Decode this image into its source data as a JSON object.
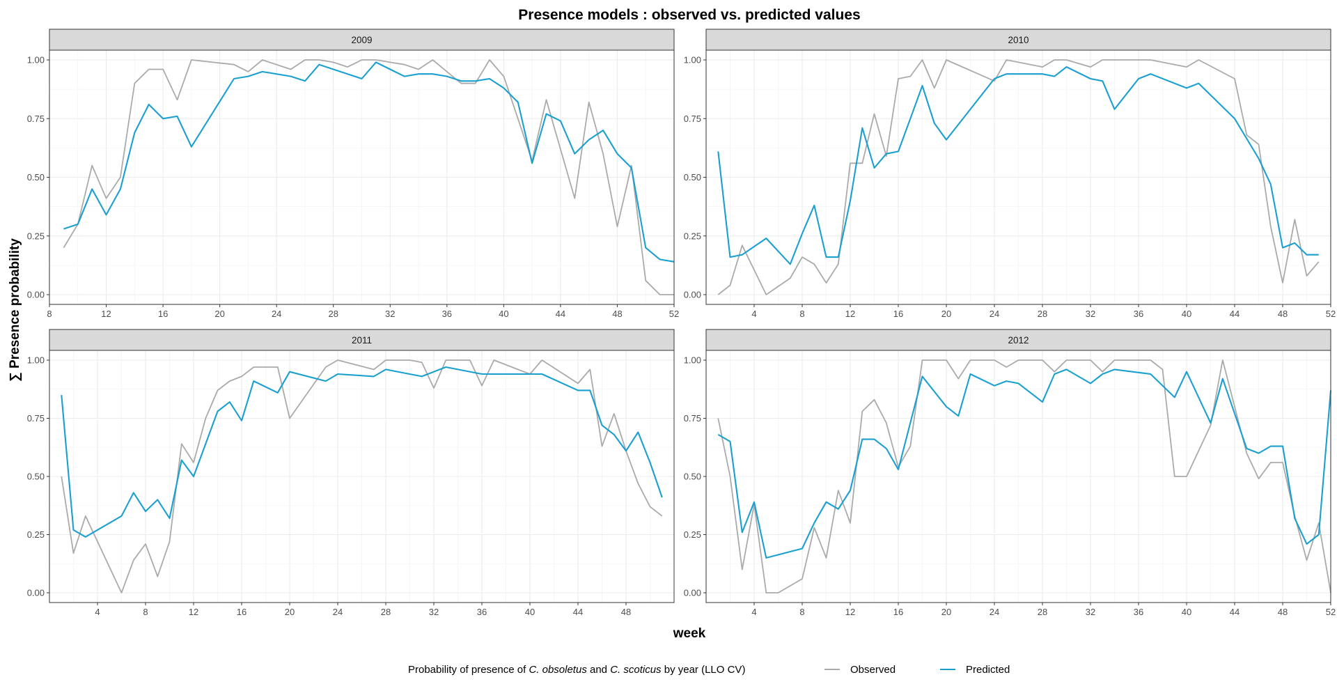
{
  "chart_data": {
    "type": "line",
    "title": "Presence models : observed vs. predicted values",
    "xlabel": "week",
    "ylabel": "∑ Presence probability",
    "grid": true,
    "legend_position": "bottom",
    "legend": {
      "title_parts": [
        "Probability of presence of ",
        "C. obsoletus",
        " and ",
        "C. scoticus",
        " by year (LLO CV)"
      ],
      "entries": [
        {
          "name": "Observed",
          "color": "#aaaaaa"
        },
        {
          "name": "Predicted",
          "color": "#1a9fd1"
        }
      ]
    },
    "ylim": [
      0,
      1
    ],
    "yticks": [
      0,
      0.25,
      0.5,
      0.75,
      1
    ],
    "ytick_labels": [
      "0.00",
      "0.25",
      "0.50",
      "0.75",
      "1.00"
    ],
    "panels": [
      {
        "label": "2009",
        "xlim": [
          8,
          52
        ],
        "xticks": [
          8,
          12,
          16,
          20,
          24,
          28,
          32,
          36,
          40,
          44,
          48,
          52
        ],
        "series": [
          {
            "name": "Observed",
            "color": "#aaaaaa",
            "x": [
              9,
              10,
              11,
              12,
              13,
              14,
              15,
              16,
              17,
              18,
              21,
              22,
              23,
              25,
              26,
              27,
              28,
              29,
              30,
              31,
              32,
              33,
              34,
              35,
              36,
              37,
              38,
              39,
              40,
              41,
              42,
              43,
              44,
              45,
              46,
              47,
              48,
              49,
              50,
              51,
              52
            ],
            "y": [
              0.2,
              0.3,
              0.55,
              0.41,
              0.5,
              0.9,
              0.96,
              0.96,
              0.83,
              1.0,
              0.98,
              0.95,
              1.0,
              0.96,
              1.0,
              1.0,
              0.99,
              0.97,
              1.0,
              1.0,
              0.99,
              0.98,
              0.96,
              1.0,
              0.95,
              0.9,
              0.9,
              1.0,
              0.93,
              0.75,
              0.57,
              0.83,
              0.62,
              0.41,
              0.82,
              0.6,
              0.29,
              0.55,
              0.06,
              0.0,
              0.0
            ]
          },
          {
            "name": "Predicted",
            "color": "#1a9fd1",
            "x": [
              9,
              10,
              11,
              12,
              13,
              14,
              15,
              16,
              17,
              18,
              21,
              22,
              23,
              25,
              26,
              27,
              28,
              29,
              30,
              31,
              32,
              33,
              34,
              35,
              36,
              37,
              38,
              39,
              40,
              41,
              42,
              43,
              44,
              45,
              46,
              47,
              48,
              49,
              50,
              51,
              52
            ],
            "y": [
              0.28,
              0.3,
              0.45,
              0.34,
              0.45,
              0.69,
              0.81,
              0.75,
              0.76,
              0.63,
              0.92,
              0.93,
              0.95,
              0.93,
              0.91,
              0.98,
              0.96,
              0.94,
              0.92,
              0.99,
              0.96,
              0.93,
              0.94,
              0.94,
              0.93,
              0.91,
              0.91,
              0.92,
              0.88,
              0.82,
              0.56,
              0.77,
              0.74,
              0.6,
              0.66,
              0.7,
              0.6,
              0.54,
              0.2,
              0.15,
              0.14
            ]
          }
        ]
      },
      {
        "label": "2010",
        "xlim": [
          0,
          52
        ],
        "xticks": [
          4,
          8,
          12,
          16,
          20,
          24,
          28,
          32,
          36,
          40,
          44,
          48,
          52
        ],
        "series": [
          {
            "name": "Observed",
            "color": "#aaaaaa",
            "x": [
              1,
              2,
              3,
              5,
              7,
              8,
              9,
              10,
              11,
              12,
              13,
              14,
              15,
              16,
              17,
              18,
              19,
              20,
              24,
              25,
              28,
              29,
              30,
              32,
              33,
              35,
              37,
              40,
              41,
              44,
              45,
              46,
              47,
              48,
              49,
              50,
              51
            ],
            "y": [
              0.0,
              0.04,
              0.21,
              0.0,
              0.07,
              0.16,
              0.13,
              0.05,
              0.13,
              0.56,
              0.56,
              0.77,
              0.59,
              0.92,
              0.93,
              1.0,
              0.88,
              1.0,
              0.91,
              1.0,
              0.97,
              1.0,
              1.0,
              0.97,
              1.0,
              1.0,
              1.0,
              0.97,
              1.0,
              0.92,
              0.68,
              0.64,
              0.29,
              0.05,
              0.32,
              0.08,
              0.14
            ]
          },
          {
            "name": "Predicted",
            "color": "#1a9fd1",
            "x": [
              1,
              2,
              3,
              5,
              7,
              8,
              9,
              10,
              11,
              12,
              13,
              14,
              15,
              16,
              17,
              18,
              19,
              20,
              24,
              25,
              28,
              29,
              30,
              32,
              33,
              34,
              36,
              37,
              40,
              41,
              44,
              46,
              47,
              48,
              49,
              50,
              51
            ],
            "y": [
              0.61,
              0.16,
              0.17,
              0.24,
              0.13,
              0.26,
              0.38,
              0.16,
              0.16,
              0.4,
              0.71,
              0.54,
              0.6,
              0.61,
              0.75,
              0.89,
              0.73,
              0.66,
              0.92,
              0.94,
              0.94,
              0.93,
              0.97,
              0.92,
              0.91,
              0.79,
              0.92,
              0.94,
              0.88,
              0.9,
              0.75,
              0.58,
              0.47,
              0.2,
              0.22,
              0.17,
              0.17
            ]
          }
        ]
      },
      {
        "label": "2011",
        "xlim": [
          0,
          52
        ],
        "xticks": [
          4,
          8,
          12,
          16,
          20,
          24,
          28,
          32,
          36,
          40,
          44,
          48
        ],
        "series": [
          {
            "name": "Observed",
            "color": "#aaaaaa",
            "x": [
              1,
              2,
              3,
              6,
              7,
              8,
              9,
              10,
              11,
              12,
              13,
              14,
              15,
              16,
              17,
              19,
              20,
              23,
              24,
              27,
              28,
              30,
              31,
              32,
              33,
              35,
              36,
              37,
              40,
              41,
              44,
              45,
              46,
              47,
              48,
              49,
              50,
              51
            ],
            "y": [
              0.5,
              0.17,
              0.33,
              0.0,
              0.14,
              0.21,
              0.07,
              0.22,
              0.64,
              0.56,
              0.75,
              0.87,
              0.91,
              0.93,
              0.97,
              0.97,
              0.75,
              0.97,
              1.0,
              0.96,
              1.0,
              1.0,
              0.99,
              0.88,
              1.0,
              1.0,
              0.89,
              1.0,
              0.94,
              1.0,
              0.9,
              0.96,
              0.63,
              0.77,
              0.61,
              0.47,
              0.37,
              0.33
            ]
          },
          {
            "name": "Predicted",
            "color": "#1a9fd1",
            "x": [
              1,
              2,
              3,
              6,
              7,
              8,
              9,
              10,
              11,
              12,
              13,
              14,
              15,
              16,
              17,
              19,
              20,
              23,
              24,
              27,
              28,
              31,
              33,
              36,
              41,
              44,
              45,
              46,
              47,
              48,
              49,
              50,
              51
            ],
            "y": [
              0.85,
              0.27,
              0.24,
              0.33,
              0.43,
              0.35,
              0.4,
              0.32,
              0.57,
              0.5,
              0.64,
              0.78,
              0.82,
              0.74,
              0.91,
              0.86,
              0.95,
              0.91,
              0.94,
              0.93,
              0.96,
              0.93,
              0.97,
              0.94,
              0.94,
              0.87,
              0.87,
              0.72,
              0.68,
              0.61,
              0.69,
              0.56,
              0.41
            ]
          }
        ]
      },
      {
        "label": "2012",
        "xlim": [
          0,
          52
        ],
        "xticks": [
          4,
          8,
          12,
          16,
          20,
          24,
          28,
          32,
          36,
          40,
          44,
          48,
          52
        ],
        "series": [
          {
            "name": "Observed",
            "color": "#aaaaaa",
            "x": [
              1,
              2,
              3,
              4,
              5,
              6,
              8,
              9,
              10,
              11,
              12,
              13,
              14,
              15,
              16,
              17,
              18,
              20,
              21,
              22,
              24,
              25,
              26,
              28,
              29,
              30,
              32,
              33,
              34,
              35,
              37,
              38,
              39,
              40,
              42,
              43,
              44,
              45,
              46,
              47,
              48,
              49,
              50,
              51,
              52
            ],
            "y": [
              0.75,
              0.5,
              0.1,
              0.38,
              0.0,
              0.0,
              0.06,
              0.28,
              0.15,
              0.44,
              0.3,
              0.78,
              0.83,
              0.73,
              0.54,
              0.63,
              1.0,
              1.0,
              0.92,
              1.0,
              1.0,
              0.97,
              1.0,
              1.0,
              0.95,
              1.0,
              1.0,
              0.95,
              1.0,
              1.0,
              1.0,
              0.96,
              0.5,
              0.5,
              0.72,
              1.0,
              0.8,
              0.6,
              0.49,
              0.56,
              0.56,
              0.33,
              0.14,
              0.3,
              0.0
            ]
          },
          {
            "name": "Predicted",
            "color": "#1a9fd1",
            "x": [
              1,
              2,
              3,
              4,
              5,
              8,
              9,
              10,
              11,
              12,
              13,
              14,
              15,
              16,
              18,
              20,
              21,
              22,
              24,
              25,
              26,
              28,
              29,
              30,
              32,
              33,
              34,
              37,
              39,
              40,
              42,
              43,
              45,
              46,
              47,
              48,
              49,
              50,
              51,
              52
            ],
            "y": [
              0.68,
              0.65,
              0.26,
              0.39,
              0.15,
              0.19,
              0.3,
              0.39,
              0.36,
              0.44,
              0.66,
              0.66,
              0.62,
              0.53,
              0.93,
              0.8,
              0.76,
              0.94,
              0.89,
              0.91,
              0.9,
              0.82,
              0.94,
              0.96,
              0.9,
              0.94,
              0.96,
              0.94,
              0.84,
              0.95,
              0.73,
              0.92,
              0.62,
              0.6,
              0.63,
              0.63,
              0.32,
              0.21,
              0.25,
              0.87
            ]
          }
        ]
      }
    ]
  }
}
